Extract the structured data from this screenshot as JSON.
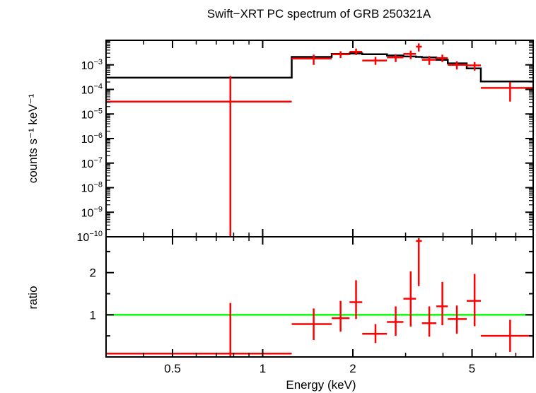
{
  "chart_data": {
    "type": "scatter",
    "title": "Swift−XRT PC spectrum of GRB 250321A",
    "xlabel": "Energy (keV)",
    "x_scale": "log",
    "xlim": [
      0.3,
      8.0
    ],
    "x_ticks": [
      {
        "value": 0.5,
        "label": "0.5"
      },
      {
        "value": 1,
        "label": "1"
      },
      {
        "value": 2,
        "label": "2"
      },
      {
        "value": 5,
        "label": "5"
      }
    ],
    "panels": {
      "top": {
        "ylabel": "counts s⁻¹ keV⁻¹",
        "y_scale": "log",
        "ylim": [
          1e-10,
          0.01
        ],
        "y_ticks": [
          {
            "value": 0.001,
            "base": "10",
            "exp": "−3"
          },
          {
            "value": 0.0001,
            "base": "10",
            "exp": "−4"
          },
          {
            "value": 1e-05,
            "base": "10",
            "exp": "−5"
          },
          {
            "value": 1e-06,
            "base": "10",
            "exp": "−6"
          },
          {
            "value": 1e-07,
            "base": "10",
            "exp": "−7"
          },
          {
            "value": 1e-08,
            "base": "10",
            "exp": "−8"
          },
          {
            "value": 1e-09,
            "base": "10",
            "exp": "−9"
          },
          {
            "value": 1e-10,
            "base": "10",
            "exp": "−10"
          }
        ],
        "data": [
          {
            "xlo": 0.3,
            "xhi": 1.25,
            "x": 0.78,
            "y": 3.2e-05,
            "ylo": 1e-10,
            "yhi": 0.00035
          },
          {
            "xlo": 1.25,
            "xhi": 1.7,
            "x": 1.48,
            "y": 0.0018,
            "ylo": 0.001,
            "yhi": 0.0026
          },
          {
            "xlo": 1.7,
            "xhi": 1.95,
            "x": 1.82,
            "y": 0.0027,
            "ylo": 0.0019,
            "yhi": 0.0036
          },
          {
            "xlo": 1.95,
            "xhi": 2.15,
            "x": 2.05,
            "y": 0.0034,
            "ylo": 0.0025,
            "yhi": 0.0046
          },
          {
            "xlo": 2.15,
            "xhi": 2.6,
            "x": 2.38,
            "y": 0.0015,
            "ylo": 0.001,
            "yhi": 0.0021
          },
          {
            "xlo": 2.6,
            "xhi": 2.95,
            "x": 2.78,
            "y": 0.002,
            "ylo": 0.0013,
            "yhi": 0.0027
          },
          {
            "xlo": 2.95,
            "xhi": 3.25,
            "x": 3.12,
            "y": 0.0028,
            "ylo": 0.0017,
            "yhi": 0.0038
          },
          {
            "xlo": 3.25,
            "xhi": 3.4,
            "x": 3.32,
            "y": 0.0055,
            "ylo": 0.0035,
            "yhi": 0.0075
          },
          {
            "xlo": 3.4,
            "xhi": 3.8,
            "x": 3.6,
            "y": 0.0016,
            "ylo": 0.001,
            "yhi": 0.0023
          },
          {
            "xlo": 3.8,
            "xhi": 4.15,
            "x": 3.98,
            "y": 0.0019,
            "ylo": 0.0013,
            "yhi": 0.0026
          },
          {
            "xlo": 4.15,
            "xhi": 4.8,
            "x": 4.45,
            "y": 0.001,
            "ylo": 0.00065,
            "yhi": 0.0014
          },
          {
            "xlo": 4.8,
            "xhi": 5.35,
            "x": 5.1,
            "y": 0.00095,
            "ylo": 0.00058,
            "yhi": 0.0013
          },
          {
            "xlo": 5.35,
            "xhi": 8.0,
            "x": 6.7,
            "y": 0.000115,
            "ylo": 3.2e-05,
            "yhi": 0.0002
          }
        ],
        "model": [
          {
            "xlo": 0.3,
            "xhi": 1.25,
            "y": 0.0003
          },
          {
            "xlo": 1.25,
            "xhi": 1.7,
            "y": 0.0021
          },
          {
            "xlo": 1.7,
            "xhi": 1.95,
            "y": 0.0028
          },
          {
            "xlo": 1.95,
            "xhi": 2.15,
            "y": 0.0029
          },
          {
            "xlo": 2.15,
            "xhi": 2.6,
            "y": 0.0027
          },
          {
            "xlo": 2.6,
            "xhi": 2.95,
            "y": 0.0024
          },
          {
            "xlo": 2.95,
            "xhi": 3.25,
            "y": 0.0022
          },
          {
            "xlo": 3.25,
            "xhi": 3.4,
            "y": 0.0021
          },
          {
            "xlo": 3.4,
            "xhi": 3.8,
            "y": 0.002
          },
          {
            "xlo": 3.8,
            "xhi": 4.15,
            "y": 0.0016
          },
          {
            "xlo": 4.15,
            "xhi": 4.8,
            "y": 0.00115
          },
          {
            "xlo": 4.8,
            "xhi": 5.35,
            "y": 0.00072
          },
          {
            "xlo": 5.35,
            "xhi": 8.0,
            "y": 0.00021
          }
        ]
      },
      "bottom": {
        "ylabel": "ratio",
        "y_scale": "linear",
        "ylim": [
          0,
          2.85
        ],
        "y_ticks": [
          {
            "value": 1,
            "label": "1"
          },
          {
            "value": 2,
            "label": "2"
          }
        ],
        "reference_line": 1,
        "data": [
          {
            "xlo": 0.3,
            "xhi": 1.25,
            "x": 0.78,
            "y": 0.08,
            "ylo": 0.0,
            "yhi": 1.28
          },
          {
            "xlo": 1.25,
            "xhi": 1.7,
            "x": 1.48,
            "y": 0.78,
            "ylo": 0.4,
            "yhi": 1.15
          },
          {
            "xlo": 1.7,
            "xhi": 1.95,
            "x": 1.82,
            "y": 0.92,
            "ylo": 0.6,
            "yhi": 1.33
          },
          {
            "xlo": 1.95,
            "xhi": 2.15,
            "x": 2.05,
            "y": 1.3,
            "ylo": 0.9,
            "yhi": 1.82
          },
          {
            "xlo": 2.15,
            "xhi": 2.6,
            "x": 2.38,
            "y": 0.55,
            "ylo": 0.33,
            "yhi": 0.78
          },
          {
            "xlo": 2.6,
            "xhi": 2.95,
            "x": 2.78,
            "y": 0.83,
            "ylo": 0.5,
            "yhi": 1.2
          },
          {
            "xlo": 2.95,
            "xhi": 3.25,
            "x": 3.12,
            "y": 1.38,
            "ylo": 0.72,
            "yhi": 2.03
          },
          {
            "xlo": 3.25,
            "xhi": 3.4,
            "x": 3.32,
            "y": 2.75,
            "ylo": 1.68,
            "yhi": 2.82
          },
          {
            "xlo": 3.4,
            "xhi": 3.8,
            "x": 3.6,
            "y": 0.8,
            "ylo": 0.48,
            "yhi": 1.2
          },
          {
            "xlo": 3.8,
            "xhi": 4.15,
            "x": 3.98,
            "y": 1.2,
            "ylo": 0.75,
            "yhi": 1.78
          },
          {
            "xlo": 4.15,
            "xhi": 4.8,
            "x": 4.45,
            "y": 0.9,
            "ylo": 0.55,
            "yhi": 1.22
          },
          {
            "xlo": 4.8,
            "xhi": 5.35,
            "x": 5.1,
            "y": 1.33,
            "ylo": 0.73,
            "yhi": 1.97
          },
          {
            "xlo": 5.35,
            "xhi": 8.0,
            "x": 6.7,
            "y": 0.5,
            "ylo": 0.12,
            "yhi": 0.88
          }
        ]
      }
    },
    "colors": {
      "data": "#ff0000",
      "model": "#000000",
      "reference_line": "#00ff00",
      "axes": "#000000"
    },
    "grid": false,
    "legend": "none"
  }
}
